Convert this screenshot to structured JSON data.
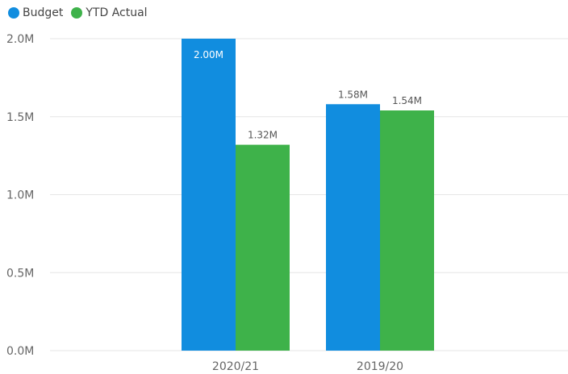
{
  "chart_data": {
    "type": "bar",
    "categories": [
      "2020/21",
      "2019/20"
    ],
    "series": [
      {
        "name": "Budget",
        "values": [
          2.0,
          1.58
        ],
        "labels": [
          "2.00M",
          "1.58M"
        ],
        "color": "#118DDF"
      },
      {
        "name": "YTD Actual",
        "values": [
          1.32,
          1.54
        ],
        "labels": [
          "1.32M",
          "1.54M"
        ],
        "color": "#3EB24A"
      }
    ],
    "y_ticks": [
      0,
      0.5,
      1.0,
      1.5,
      2.0
    ],
    "y_tick_labels": [
      "0.0M",
      "0.5M",
      "1.0M",
      "1.5M",
      "2.0M"
    ],
    "ylim": [
      0,
      2.0
    ],
    "grid": true,
    "legend": "top-left"
  }
}
